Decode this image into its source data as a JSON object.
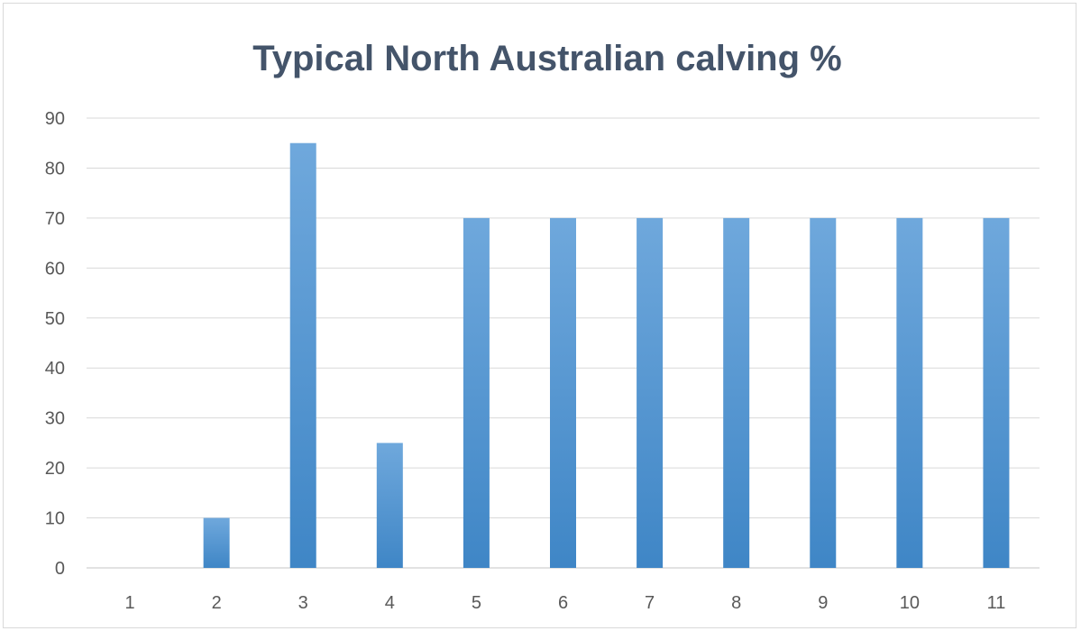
{
  "chart_data": {
    "type": "bar",
    "title": "Typical North Australian calving %",
    "xlabel": "",
    "ylabel": "",
    "categories": [
      "1",
      "2",
      "3",
      "4",
      "5",
      "6",
      "7",
      "8",
      "9",
      "10",
      "11"
    ],
    "values": [
      0,
      10,
      85,
      25,
      70,
      70,
      70,
      70,
      70,
      70,
      70
    ],
    "ylim": [
      0,
      90
    ],
    "yticks": [
      0,
      10,
      20,
      30,
      40,
      50,
      60,
      70,
      80,
      90
    ],
    "grid": true,
    "legend": "none",
    "colors": {
      "bar_top": "#6fa8dc",
      "bar_bottom": "#3f86c6",
      "title": "#44546a",
      "tick": "#595959",
      "grid": "#d9d9d9"
    }
  }
}
